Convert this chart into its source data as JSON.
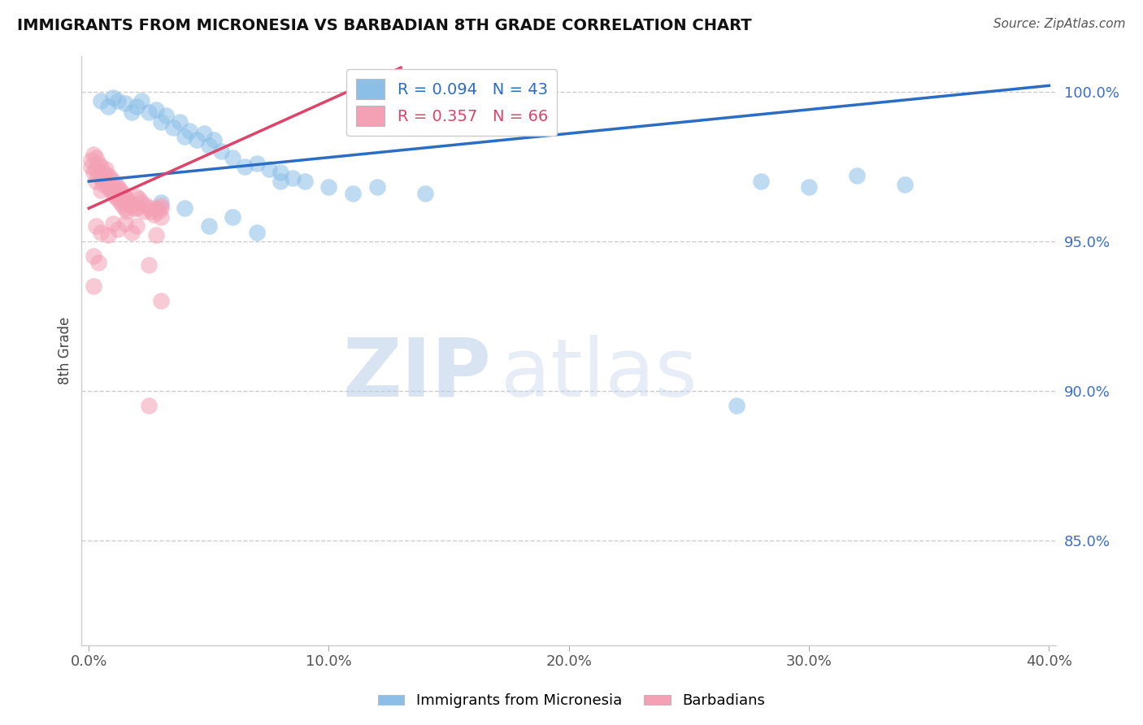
{
  "title": "IMMIGRANTS FROM MICRONESIA VS BARBADIAN 8TH GRADE CORRELATION CHART",
  "source": "Source: ZipAtlas.com",
  "ylabel": "8th Grade",
  "ylim": [
    0.815,
    1.012
  ],
  "xlim": [
    -0.003,
    0.403
  ],
  "yticks": [
    0.85,
    0.9,
    0.95,
    1.0
  ],
  "ytick_labels": [
    "85.0%",
    "90.0%",
    "95.0%",
    "100.0%"
  ],
  "xticks": [
    0.0,
    0.1,
    0.2,
    0.3,
    0.4
  ],
  "xtick_labels": [
    "0.0%",
    "10.0%",
    "20.0%",
    "30.0%",
    "40.0%"
  ],
  "legend_R1": "R = 0.094",
  "legend_N1": "N = 43",
  "legend_R2": "R = 0.357",
  "legend_N2": "N = 66",
  "label1": "Immigrants from Micronesia",
  "label2": "Barbadians",
  "color1": "#8BBFE8",
  "color2": "#F4A0B5",
  "trendline1_color": "#2B6CC4",
  "trendline2_color": "#E0436A",
  "watermark_zip": "ZIP",
  "watermark_atlas": "atlas",
  "background_color": "#ffffff",
  "grid_color": "#cccccc",
  "blue_x": [
    0.005,
    0.008,
    0.01,
    0.012,
    0.015,
    0.018,
    0.02,
    0.022,
    0.025,
    0.028,
    0.03,
    0.032,
    0.035,
    0.038,
    0.04,
    0.042,
    0.045,
    0.048,
    0.05,
    0.052,
    0.055,
    0.06,
    0.065,
    0.07,
    0.075,
    0.08,
    0.085,
    0.09,
    0.1,
    0.11,
    0.03,
    0.04,
    0.06,
    0.08,
    0.12,
    0.14,
    0.28,
    0.3,
    0.32,
    0.34,
    0.05,
    0.07,
    0.27
  ],
  "blue_y": [
    0.997,
    0.995,
    0.998,
    0.997,
    0.996,
    0.993,
    0.995,
    0.997,
    0.993,
    0.994,
    0.99,
    0.992,
    0.988,
    0.99,
    0.985,
    0.987,
    0.984,
    0.986,
    0.982,
    0.984,
    0.98,
    0.978,
    0.975,
    0.976,
    0.974,
    0.973,
    0.971,
    0.97,
    0.968,
    0.966,
    0.963,
    0.961,
    0.958,
    0.97,
    0.968,
    0.966,
    0.97,
    0.968,
    0.972,
    0.969,
    0.955,
    0.953,
    0.895
  ],
  "pink_x": [
    0.001,
    0.001,
    0.002,
    0.002,
    0.003,
    0.003,
    0.003,
    0.004,
    0.004,
    0.005,
    0.005,
    0.005,
    0.006,
    0.006,
    0.007,
    0.007,
    0.008,
    0.008,
    0.009,
    0.009,
    0.01,
    0.01,
    0.011,
    0.011,
    0.012,
    0.012,
    0.013,
    0.013,
    0.014,
    0.014,
    0.015,
    0.015,
    0.016,
    0.016,
    0.017,
    0.018,
    0.019,
    0.02,
    0.02,
    0.021,
    0.022,
    0.023,
    0.024,
    0.025,
    0.026,
    0.027,
    0.028,
    0.029,
    0.03,
    0.03,
    0.003,
    0.005,
    0.008,
    0.01,
    0.012,
    0.015,
    0.018,
    0.02,
    0.028,
    0.03,
    0.002,
    0.004,
    0.025,
    0.03,
    0.002,
    0.025
  ],
  "pink_y": [
    0.977,
    0.975,
    0.979,
    0.973,
    0.978,
    0.974,
    0.97,
    0.976,
    0.972,
    0.975,
    0.971,
    0.967,
    0.973,
    0.969,
    0.974,
    0.97,
    0.972,
    0.968,
    0.971,
    0.967,
    0.97,
    0.966,
    0.969,
    0.965,
    0.968,
    0.964,
    0.967,
    0.963,
    0.966,
    0.962,
    0.965,
    0.961,
    0.964,
    0.96,
    0.963,
    0.962,
    0.961,
    0.965,
    0.961,
    0.964,
    0.963,
    0.96,
    0.962,
    0.961,
    0.96,
    0.959,
    0.961,
    0.96,
    0.962,
    0.961,
    0.955,
    0.953,
    0.952,
    0.956,
    0.954,
    0.956,
    0.953,
    0.955,
    0.952,
    0.958,
    0.945,
    0.943,
    0.942,
    0.93,
    0.935,
    0.895
  ],
  "blue_trend_x": [
    0.0,
    0.4
  ],
  "blue_trend_y": [
    0.97,
    1.002
  ],
  "pink_trend_x": [
    0.0,
    0.13
  ],
  "pink_trend_y": [
    0.961,
    1.008
  ]
}
